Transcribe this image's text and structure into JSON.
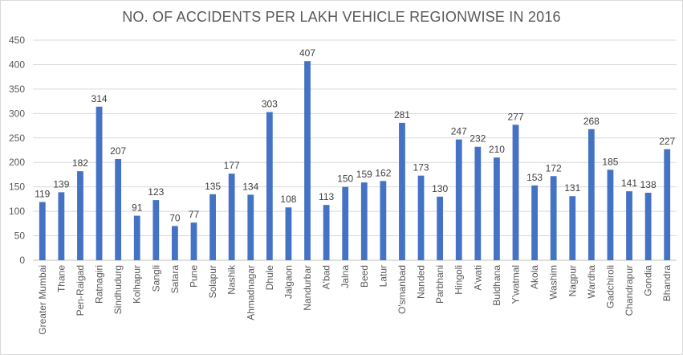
{
  "chart_data": {
    "type": "bar",
    "title": "NO. OF ACCIDENTS PER LAKH VEHICLE REGIONWISE IN 2016",
    "xlabel": "",
    "ylabel": "",
    "ylim": [
      0,
      450
    ],
    "yticks": [
      0,
      50,
      100,
      150,
      200,
      250,
      300,
      350,
      400,
      450
    ],
    "grid": true,
    "legend": "none",
    "bar_color": "#4472c4",
    "categories": [
      "Greater Mumbai",
      "Thane",
      "Pen-Raigad",
      "Ratnagiri",
      "Sindhudurg",
      "Kolhapur",
      "Sangli",
      "Satara",
      "Pune",
      "Solapur",
      "Nashik",
      "Ahmadnagar",
      "Dhule",
      "Jalgaon",
      "Nandurbar",
      "A'bad",
      "Jalna",
      "Beed",
      "Latur",
      "O'smanbad",
      "Nanded",
      "Parbhani",
      "Hingoli",
      "A'wati",
      "Buldhana",
      "Y'watmal",
      "Akola",
      "Washim",
      "Nagpur",
      "Wardha",
      "Gadchiroli",
      "Chandrapur",
      "Gondia",
      "Bhandra"
    ],
    "values": [
      119,
      139,
      182,
      314,
      207,
      91,
      123,
      70,
      77,
      135,
      177,
      134,
      303,
      108,
      407,
      113,
      150,
      159,
      162,
      281,
      173,
      130,
      247,
      232,
      210,
      277,
      153,
      172,
      131,
      268,
      185,
      141,
      138,
      227
    ]
  }
}
